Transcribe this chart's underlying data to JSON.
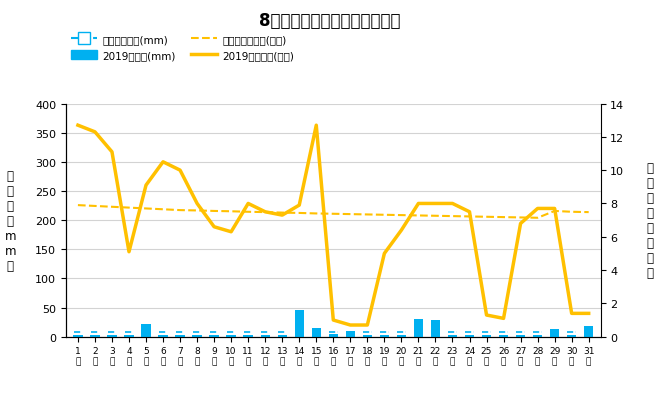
{
  "title": "8月降水量・日照時間（日別）",
  "days": [
    1,
    2,
    3,
    4,
    5,
    6,
    7,
    8,
    9,
    10,
    11,
    12,
    13,
    14,
    15,
    16,
    17,
    18,
    19,
    20,
    21,
    22,
    23,
    24,
    25,
    26,
    27,
    28,
    29,
    30,
    31
  ],
  "precip_2019": [
    3,
    3,
    3,
    3,
    22,
    3,
    3,
    3,
    3,
    3,
    3,
    3,
    3,
    45,
    15,
    5,
    10,
    3,
    3,
    3,
    30,
    28,
    3,
    3,
    3,
    3,
    3,
    3,
    14,
    3,
    18
  ],
  "precip_avg": [
    8,
    8,
    8,
    8,
    8,
    8,
    8,
    8,
    8,
    8,
    8,
    8,
    8,
    8,
    8,
    8,
    8,
    8,
    8,
    8,
    8,
    8,
    8,
    8,
    8,
    8,
    8,
    8,
    8,
    8,
    8
  ],
  "sunshine_2019": [
    12.7,
    12.3,
    11.1,
    5.1,
    9.1,
    10.5,
    10.0,
    8.0,
    6.6,
    6.3,
    8.0,
    7.5,
    7.3,
    7.9,
    12.7,
    1.0,
    0.7,
    0.7,
    5.0,
    6.4,
    8.0,
    8.0,
    8.0,
    7.5,
    1.3,
    1.1,
    6.8,
    7.7,
    7.7,
    1.4,
    1.4
  ],
  "sunshine_avg": [
    7.9,
    7.85,
    7.8,
    7.75,
    7.7,
    7.65,
    7.6,
    7.58,
    7.55,
    7.53,
    7.5,
    7.48,
    7.45,
    7.43,
    7.4,
    7.38,
    7.36,
    7.34,
    7.32,
    7.3,
    7.28,
    7.26,
    7.24,
    7.22,
    7.2,
    7.18,
    7.16,
    7.14,
    7.55,
    7.5,
    7.48
  ],
  "precip_bar_color": "#00B0F0",
  "precip_avg_color": "#00B0F0",
  "sunshine_line_color": "#FFC000",
  "sunshine_avg_color": "#FFC000",
  "left_ylim": [
    0,
    400
  ],
  "right_ylim": [
    0,
    14
  ],
  "left_yticks": [
    0,
    50,
    100,
    150,
    200,
    250,
    300,
    350,
    400
  ],
  "right_yticks": [
    0,
    2,
    4,
    6,
    8,
    10,
    12,
    14
  ],
  "legend_row1_left": "降水量平年値(mm)",
  "legend_row1_right": "2019降水量(mm)",
  "legend_row2_left": "日照時間平年値(時間)",
  "legend_row2_right": "2019日照時間(時間)",
  "ylabel_left": "降\n水\n量\n（\nm\nm\n）",
  "ylabel_right": "日\n照\n時\n間\n（\n時\n間\n）"
}
